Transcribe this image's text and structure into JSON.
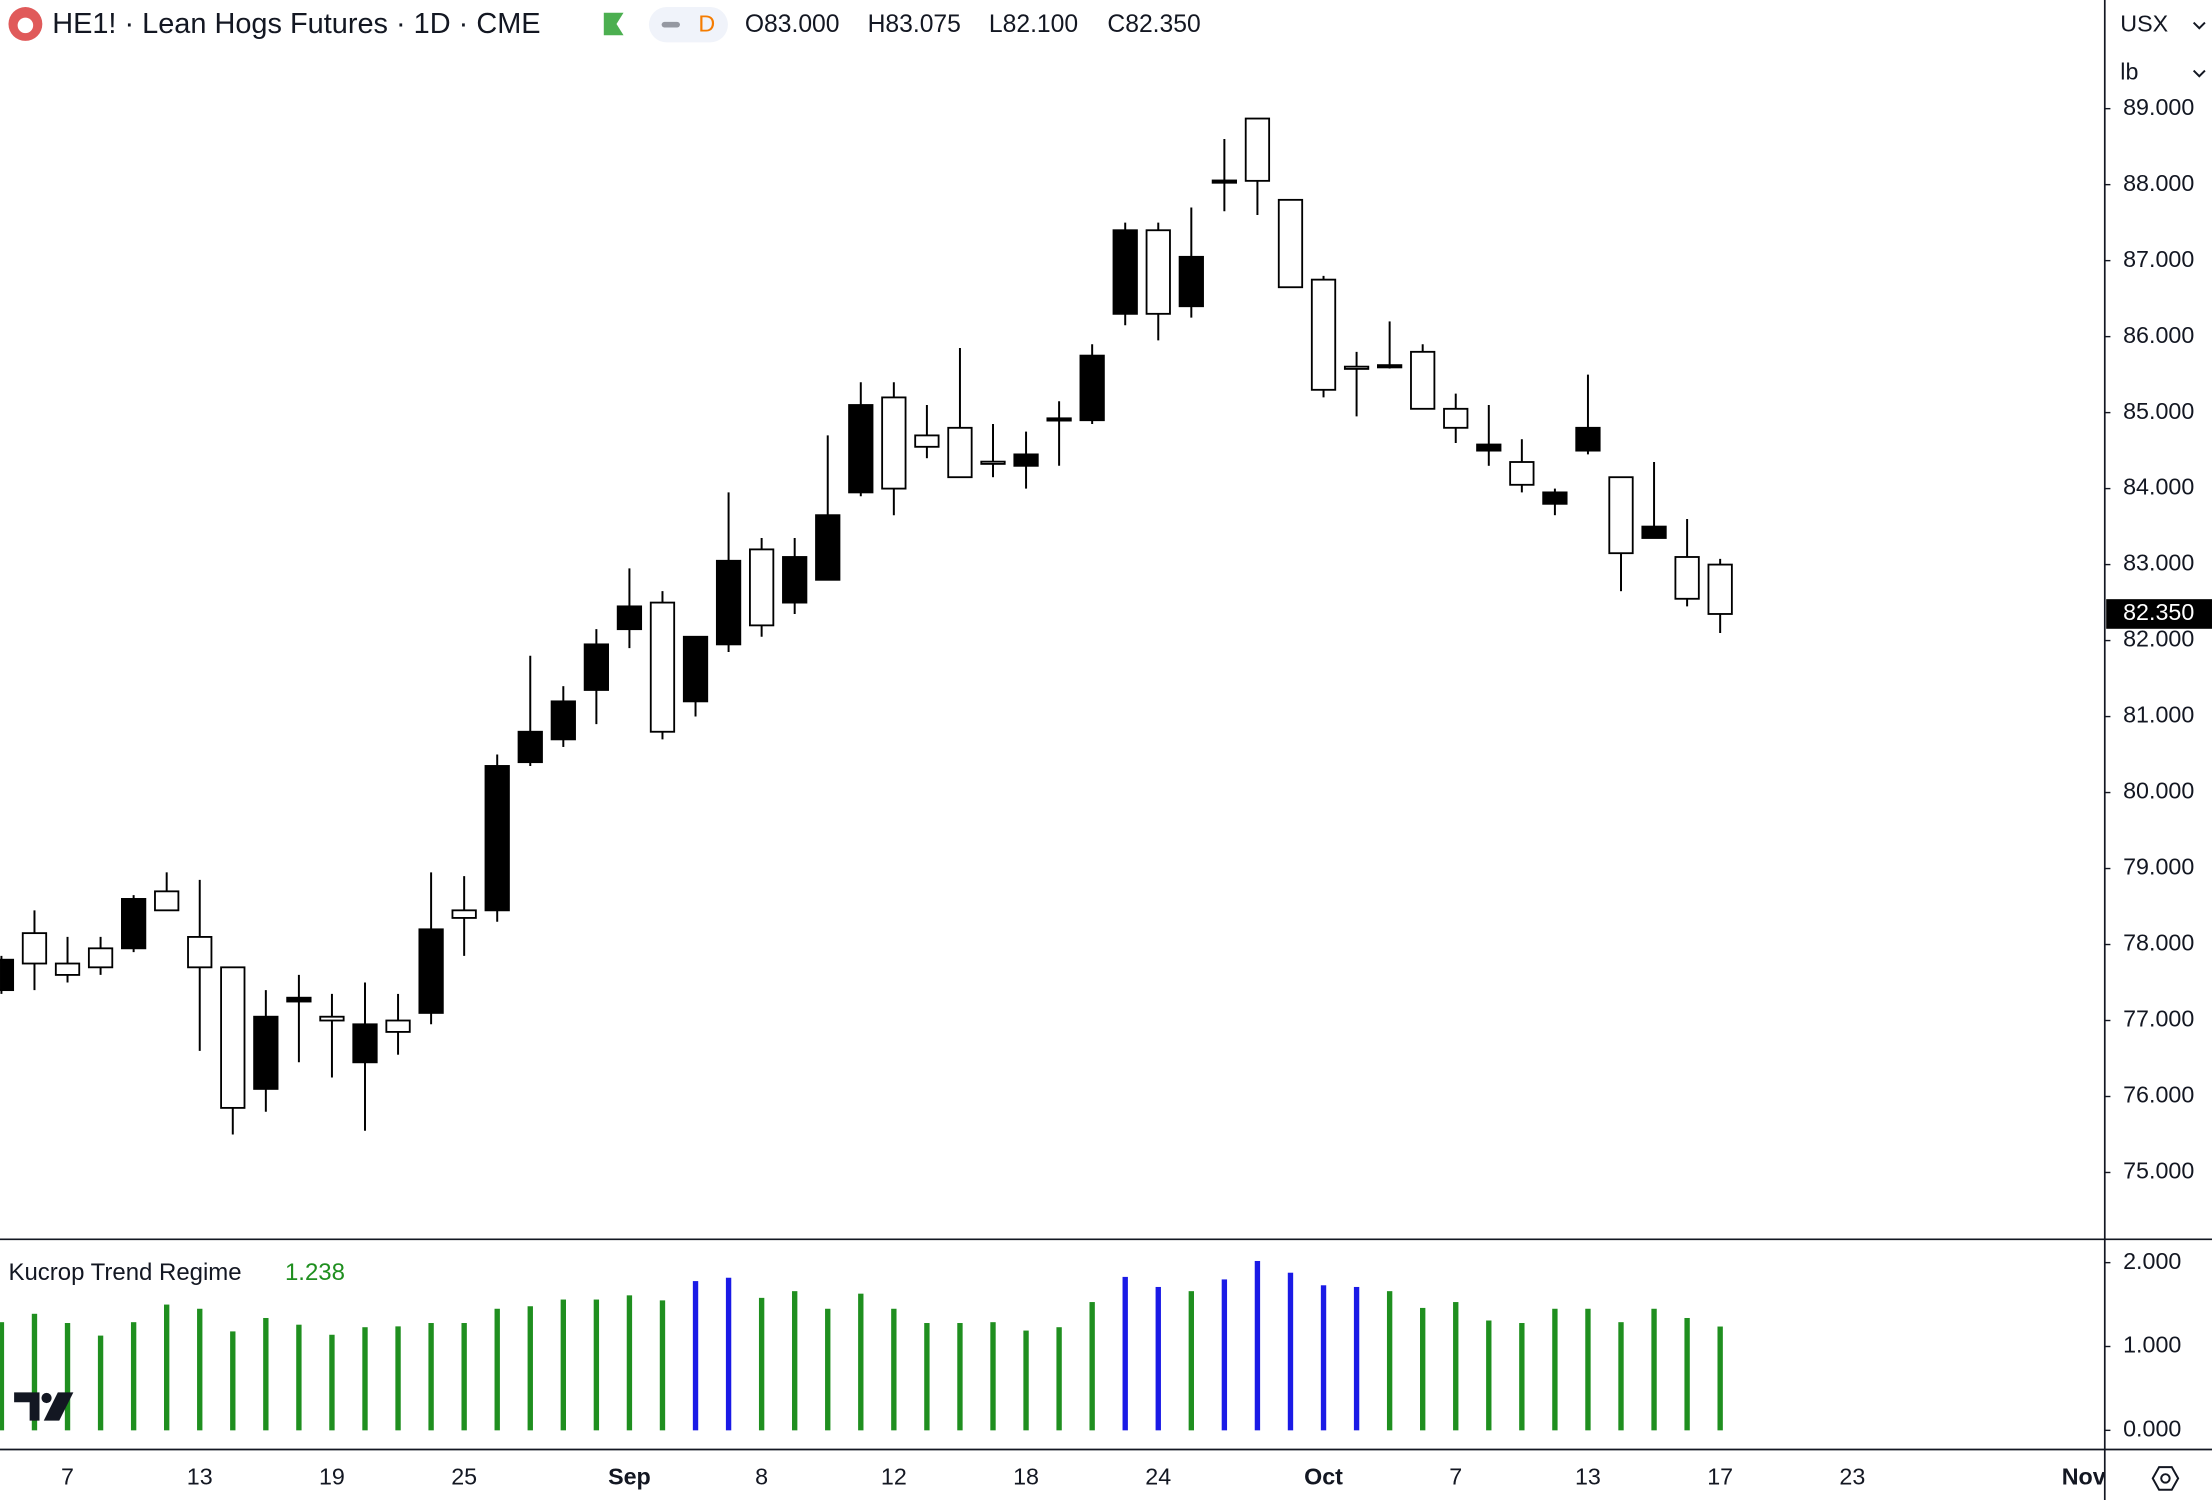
{
  "header": {
    "symbol": "HE1! · Lean Hogs Futures · 1D · CME",
    "badge": "D",
    "ohlc": [
      "O83.000",
      "H83.075",
      "L82.100",
      "C82.350"
    ],
    "currency": "USX",
    "unit": "lb"
  },
  "chart_data": [
    {
      "type": "candlestick",
      "categories": [
        null,
        null,
        "7",
        null,
        null,
        null,
        "13",
        null,
        null,
        null,
        "19",
        null,
        null,
        null,
        "25",
        null,
        null,
        null,
        null,
        "Sep",
        null,
        null,
        null,
        "8",
        null,
        null,
        null,
        "12",
        null,
        null,
        null,
        "18",
        null,
        null,
        null,
        "24",
        null,
        null,
        null,
        null,
        "Oct",
        null,
        null,
        null,
        "7",
        null,
        null,
        null,
        "13",
        null,
        null,
        null,
        "17",
        null,
        null,
        null,
        "23",
        null,
        null,
        null,
        null,
        null,
        null,
        "Nov"
      ],
      "open": [
        77.4,
        78.15,
        77.75,
        77.95,
        77.95,
        78.7,
        78.1,
        77.7,
        76.1,
        77.25,
        77.05,
        76.45,
        77.0,
        77.1,
        78.45,
        78.45,
        80.4,
        80.7,
        81.35,
        82.15,
        82.5,
        81.2,
        81.95,
        83.2,
        82.5,
        82.8,
        83.95,
        85.2,
        84.7,
        84.8,
        84.35,
        84.3,
        84.9,
        84.9,
        86.3,
        87.4,
        86.4,
        88.03,
        88.87,
        87.8,
        86.75,
        85.6,
        85.6,
        85.8,
        85.05,
        84.5,
        84.35,
        83.8,
        84.5,
        84.15,
        83.35,
        83.1,
        83.0,
        null,
        null,
        null,
        null,
        null,
        null,
        null,
        null,
        null,
        null,
        null
      ],
      "high": [
        77.85,
        78.45,
        78.1,
        78.1,
        78.65,
        78.95,
        78.85,
        77.7,
        77.4,
        77.6,
        77.35,
        77.5,
        77.35,
        78.95,
        78.9,
        80.5,
        81.8,
        81.4,
        82.15,
        82.95,
        82.65,
        82.05,
        83.95,
        83.35,
        83.35,
        84.7,
        85.4,
        85.4,
        85.1,
        85.85,
        84.85,
        84.75,
        85.15,
        85.9,
        87.5,
        87.5,
        87.7,
        88.6,
        88.87,
        87.8,
        86.8,
        85.8,
        86.2,
        85.9,
        85.25,
        85.1,
        84.65,
        84.0,
        85.5,
        84.15,
        84.35,
        83.6,
        83.075,
        null,
        null,
        null,
        null,
        null,
        null,
        null,
        null,
        null,
        null,
        null
      ],
      "low": [
        77.35,
        77.4,
        77.5,
        77.6,
        77.9,
        78.45,
        76.6,
        75.5,
        75.8,
        76.45,
        76.25,
        75.55,
        76.55,
        76.95,
        77.85,
        78.3,
        80.35,
        80.6,
        80.9,
        81.9,
        80.7,
        81.0,
        81.85,
        82.05,
        82.35,
        82.8,
        83.9,
        83.65,
        84.4,
        84.15,
        84.15,
        84.0,
        84.3,
        84.85,
        86.15,
        85.95,
        86.25,
        87.65,
        87.6,
        86.65,
        85.2,
        84.95,
        85.58,
        85.05,
        84.6,
        84.3,
        83.95,
        83.65,
        84.45,
        82.65,
        83.35,
        82.45,
        82.1,
        null,
        null,
        null,
        null,
        null,
        null,
        null,
        null,
        null,
        null,
        null
      ],
      "close": [
        77.8,
        77.75,
        77.6,
        77.7,
        78.6,
        78.45,
        77.7,
        75.85,
        77.05,
        77.3,
        77.0,
        76.95,
        76.85,
        78.2,
        78.35,
        80.35,
        80.8,
        81.2,
        81.95,
        82.45,
        80.8,
        82.05,
        83.05,
        82.2,
        83.1,
        83.65,
        85.1,
        84.0,
        84.55,
        84.15,
        84.33,
        84.45,
        84.92,
        85.75,
        87.4,
        86.3,
        87.05,
        88.05,
        88.05,
        86.65,
        85.3,
        85.58,
        85.62,
        85.05,
        84.8,
        84.58,
        84.05,
        83.95,
        84.8,
        83.15,
        83.5,
        82.55,
        82.35,
        null,
        null,
        null,
        null,
        null,
        null,
        null,
        null,
        null,
        null,
        null
      ],
      "up_color": "#000000",
      "down_color": "#ffffff",
      "wick_color": "#000000",
      "ylim": [
        74.13,
        90.43
      ],
      "yticks": [
        {
          "value": 75,
          "label": "75.000"
        },
        {
          "value": 76,
          "label": "76.000"
        },
        {
          "value": 77,
          "label": "77.000"
        },
        {
          "value": 78,
          "label": "78.000"
        },
        {
          "value": 79,
          "label": "79.000"
        },
        {
          "value": 80,
          "label": "80.000"
        },
        {
          "value": 81,
          "label": "81.000"
        },
        {
          "value": 82,
          "label": "82.000"
        },
        {
          "value": 83,
          "label": "83.000"
        },
        {
          "value": 84,
          "label": "84.000"
        },
        {
          "value": 85,
          "label": "85.000"
        },
        {
          "value": 86,
          "label": "86.000"
        },
        {
          "value": 87,
          "label": "87.000"
        },
        {
          "value": 88,
          "label": "88.000"
        },
        {
          "value": 89,
          "label": "89.000"
        }
      ],
      "price_marker": {
        "value": 82.35,
        "label": "82.350"
      }
    },
    {
      "type": "bar",
      "title": "Kucrop Trend Regime",
      "title_value_color": "#1f8f1f",
      "values": [
        1.29,
        1.39,
        1.28,
        1.13,
        1.29,
        1.5,
        1.45,
        1.18,
        1.34,
        1.26,
        1.14,
        1.23,
        1.24,
        1.28,
        1.28,
        1.45,
        1.48,
        1.56,
        1.56,
        1.61,
        1.55,
        1.78,
        1.82,
        1.58,
        1.66,
        1.45,
        1.63,
        1.45,
        1.28,
        1.28,
        1.29,
        1.19,
        1.23,
        1.53,
        1.83,
        1.71,
        1.66,
        1.8,
        2.02,
        1.88,
        1.73,
        1.71,
        1.66,
        1.46,
        1.53,
        1.31,
        1.28,
        1.45,
        1.45,
        1.29,
        1.45,
        1.34,
        1.238,
        null,
        null,
        null,
        null,
        null,
        null,
        null,
        null,
        null,
        null,
        null
      ],
      "colors": [
        "#1f8f1f",
        "#1f8f1f",
        "#1f8f1f",
        "#1f8f1f",
        "#1f8f1f",
        "#1f8f1f",
        "#1f8f1f",
        "#1f8f1f",
        "#1f8f1f",
        "#1f8f1f",
        "#1f8f1f",
        "#1f8f1f",
        "#1f8f1f",
        "#1f8f1f",
        "#1f8f1f",
        "#1f8f1f",
        "#1f8f1f",
        "#1f8f1f",
        "#1f8f1f",
        "#1f8f1f",
        "#1f8f1f",
        "#1a1ae6",
        "#1a1ae6",
        "#1f8f1f",
        "#1f8f1f",
        "#1f8f1f",
        "#1f8f1f",
        "#1f8f1f",
        "#1f8f1f",
        "#1f8f1f",
        "#1f8f1f",
        "#1f8f1f",
        "#1f8f1f",
        "#1f8f1f",
        "#1a1ae6",
        "#1a1ae6",
        "#1f8f1f",
        "#1a1ae6",
        "#1a1ae6",
        "#1a1ae6",
        "#1a1ae6",
        "#1a1ae6",
        "#1f8f1f",
        "#1f8f1f",
        "#1f8f1f",
        "#1f8f1f",
        "#1f8f1f",
        "#1f8f1f",
        "#1f8f1f",
        "#1f8f1f",
        "#1f8f1f",
        "#1f8f1f",
        "#1f8f1f",
        null,
        null,
        null,
        null,
        null,
        null,
        null,
        null,
        null,
        null,
        null
      ],
      "ylim": [
        -0.22,
        2.27
      ],
      "yticks": [
        {
          "value": 0,
          "label": "0.000"
        },
        {
          "value": 1,
          "label": "1.000"
        },
        {
          "value": 2,
          "label": "2.000"
        }
      ]
    }
  ]
}
